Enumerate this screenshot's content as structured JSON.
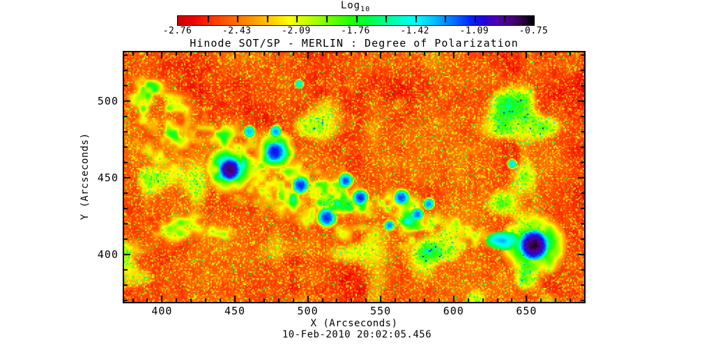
{
  "window": {
    "background": "#ffffff"
  },
  "colorbar": {
    "title": "Log",
    "title_subscript": "10",
    "tick_labels": [
      "-2.76",
      "-2.43",
      "-2.09",
      "-1.76",
      "-1.42",
      "-1.09",
      "-0.75"
    ]
  },
  "plot": {
    "title": "Hinode SOT/SP - MERLIN : Degree of Polarization",
    "xlabel": "X (Arcseconds)",
    "ylabel": "Y (Arcseconds)",
    "caption": "10-Feb-2010 20:02:05.456"
  },
  "chart_data": {
    "type": "heatmap",
    "title": "Hinode SOT/SP - MERLIN : Degree of Polarization",
    "xlabel": "X (Arcseconds)",
    "ylabel": "Y (Arcseconds)",
    "timestamp": "10-Feb-2010 20:02:05.456",
    "quantity": "log10 degree of polarization",
    "colorbar": {
      "label": "Log10",
      "orientation": "horizontal",
      "ticks": [
        -2.76,
        -2.43,
        -2.09,
        -1.76,
        -1.42,
        -1.09,
        -0.75
      ],
      "minor_divisions_per_interval": 2
    },
    "x_range": [
      374.0,
      689.5
    ],
    "y_range": [
      369.0,
      531.8
    ],
    "x_major_ticks": [
      400,
      450,
      500,
      550,
      600,
      650
    ],
    "y_major_ticks": [
      400,
      450,
      500
    ],
    "minor_tick_step": 10,
    "grid": false,
    "colormap_stops": [
      [
        0.0,
        "#cc0000"
      ],
      [
        0.04,
        "#ee0000"
      ],
      [
        0.1,
        "#ff3c00"
      ],
      [
        0.16,
        "#ff6e00"
      ],
      [
        0.22,
        "#ffa500"
      ],
      [
        0.27,
        "#ffd700"
      ],
      [
        0.31,
        "#ffff00"
      ],
      [
        0.36,
        "#c8ff00"
      ],
      [
        0.42,
        "#78ff00"
      ],
      [
        0.48,
        "#28ff00"
      ],
      [
        0.53,
        "#00ff3c"
      ],
      [
        0.58,
        "#00ff8c"
      ],
      [
        0.63,
        "#00ffd2"
      ],
      [
        0.67,
        "#00ffff"
      ],
      [
        0.72,
        "#00beff"
      ],
      [
        0.77,
        "#0078ff"
      ],
      [
        0.82,
        "#0028ff"
      ],
      [
        0.86,
        "#2800dc"
      ],
      [
        0.9,
        "#5000aa"
      ],
      [
        0.94,
        "#460078"
      ],
      [
        0.97,
        "#28003c"
      ],
      [
        1.0,
        "#000000"
      ]
    ],
    "background_log10_range": [
      -2.72,
      -2.34
    ],
    "features": {
      "sunspots": [
        {
          "x": 446.4,
          "y": 455.4,
          "radius": 7.5,
          "core_log10": -0.79,
          "ring": true
        },
        {
          "x": 655.0,
          "y": 406.0,
          "radius": 10.0,
          "core_log10": -0.75,
          "ring": true
        }
      ],
      "pores": [
        {
          "x": 477.5,
          "y": 466.8,
          "radius": 6.5,
          "core_log10": -0.99,
          "ring": true
        },
        {
          "x": 495.0,
          "y": 445.0,
          "radius": 4.8,
          "core_log10": -1.05
        },
        {
          "x": 513.0,
          "y": 424.0,
          "radius": 5.2,
          "core_log10": -1.05
        },
        {
          "x": 526.0,
          "y": 448.0,
          "radius": 3.8,
          "core_log10": -1.11
        },
        {
          "x": 536.0,
          "y": 437.0,
          "radius": 4.3,
          "core_log10": -1.05
        },
        {
          "x": 564.0,
          "y": 437.0,
          "radius": 4.3,
          "core_log10": -1.11
        },
        {
          "x": 575.0,
          "y": 426.0,
          "radius": 3.4,
          "core_log10": -1.15
        },
        {
          "x": 583.0,
          "y": 433.0,
          "radius": 2.9,
          "core_log10": -1.19
        },
        {
          "x": 556.0,
          "y": 419.0,
          "radius": 2.9,
          "core_log10": -1.19
        },
        {
          "x": 460.0,
          "y": 480.0,
          "radius": 3.0,
          "core_log10": -1.25
        },
        {
          "x": 478.0,
          "y": 480.0,
          "radius": 3.0,
          "core_log10": -1.21
        },
        {
          "x": 640.0,
          "y": 459.0,
          "radius": 2.4,
          "core_log10": -1.31
        },
        {
          "x": 494.0,
          "y": 511.0,
          "radius": 2.2,
          "core_log10": -1.43
        }
      ],
      "plage_bands": [
        {
          "path": [
            [
              387,
              509
            ],
            [
              403,
              489
            ],
            [
              432,
              470
            ],
            [
              463,
              457
            ],
            [
              504,
              440
            ],
            [
              547,
              426
            ],
            [
              588,
              415
            ],
            [
              623,
              408
            ]
          ],
          "widths": [
            12,
            17,
            22,
            24,
            24,
            22,
            17,
            12
          ],
          "log10_range": [
            -2.5,
            -1.08
          ]
        },
        {
          "path": [
            [
              378,
              404
            ],
            [
              402,
              416
            ],
            [
              426,
              420
            ],
            [
              445,
              413
            ]
          ],
          "widths": [
            8,
            10,
            10,
            7
          ],
          "log10_range": [
            -2.5,
            -1.5
          ]
        },
        {
          "path": [
            [
              382,
              480
            ],
            [
              399,
              459
            ],
            [
              418,
              446
            ]
          ],
          "widths": [
            9,
            9,
            9
          ],
          "log10_range": [
            -2.5,
            -1.58
          ]
        }
      ],
      "streaks": [
        {
          "x": 635.0,
          "y": 409.0,
          "rx": 13.0,
          "ry": 6.0,
          "log10": -1.15
        }
      ]
    }
  }
}
